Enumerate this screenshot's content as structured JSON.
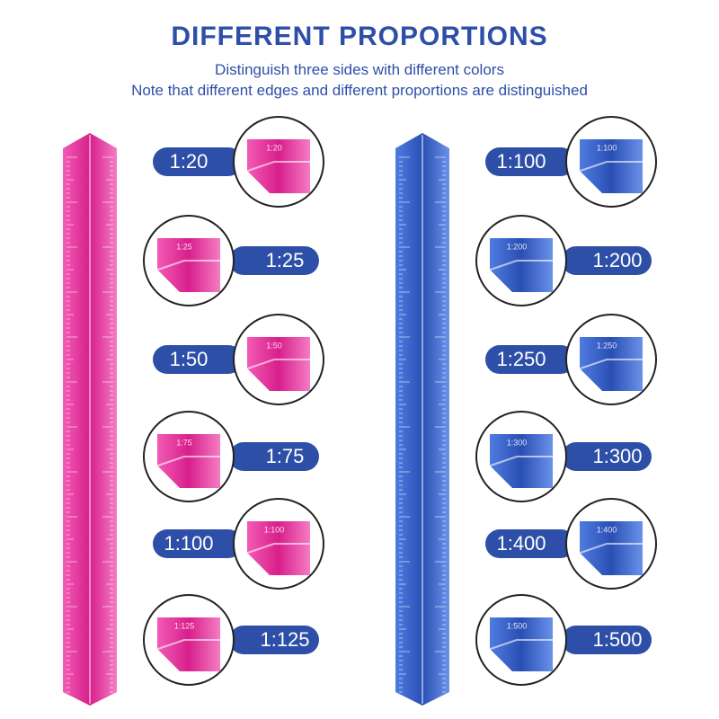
{
  "header": {
    "title": "DIFFERENT PROPORTIONS",
    "subtitle_lines": [
      "Distinguish three sides with different colors",
      "Note that different edges and different proportions are distinguished"
    ]
  },
  "rulers": [
    {
      "color": "#e0349a",
      "scales": [
        "1:20",
        "1:25",
        "1:50",
        "1:75",
        "1:100",
        "1:125"
      ]
    },
    {
      "color": "#3a63c8",
      "scales": [
        "1:100",
        "1:200",
        "1:250",
        "1:300",
        "1:400",
        "1:500"
      ]
    }
  ]
}
